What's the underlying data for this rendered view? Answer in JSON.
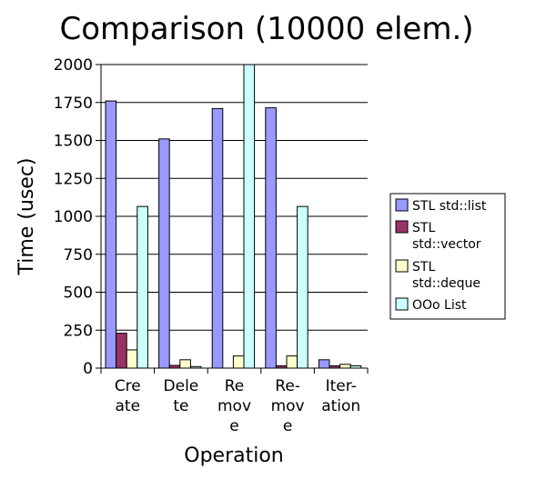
{
  "chart_data": {
    "type": "bar",
    "title": "Comparison (10000 elem.)",
    "xlabel": "Operation",
    "ylabel": "Time (usec)",
    "ylim": [
      0,
      2000
    ],
    "yticks": [
      0,
      250,
      500,
      750,
      1000,
      1250,
      1500,
      1750,
      2000
    ],
    "grid": true,
    "legend_position": "right",
    "categories": [
      "Create",
      "Delete",
      "Remove",
      "Re-move",
      "Iteration"
    ],
    "category_lines": [
      [
        "Cre",
        "ate"
      ],
      [
        "Dele",
        "te"
      ],
      [
        "Re",
        "mov",
        "e"
      ],
      [
        "Re-",
        "mov",
        "e"
      ],
      [
        "Iter-",
        "ation"
      ]
    ],
    "series": [
      {
        "name": "STL std::list",
        "name_lines": [
          "STL std::list"
        ],
        "color": "#9999ff",
        "values": [
          1760,
          1510,
          1710,
          1715,
          55
        ]
      },
      {
        "name": "STL std::vector",
        "name_lines": [
          "STL",
          "std::vector"
        ],
        "color": "#993366",
        "values": [
          230,
          18,
          0,
          15,
          15
        ]
      },
      {
        "name": "STL std::deque",
        "name_lines": [
          "STL",
          "std::deque"
        ],
        "color": "#ffffcc",
        "values": [
          120,
          55,
          80,
          80,
          25
        ]
      },
      {
        "name": "OOo List",
        "name_lines": [
          "OOo List"
        ],
        "color": "#ccffff",
        "values": [
          1065,
          10,
          2000,
          1065,
          15
        ]
      }
    ]
  }
}
